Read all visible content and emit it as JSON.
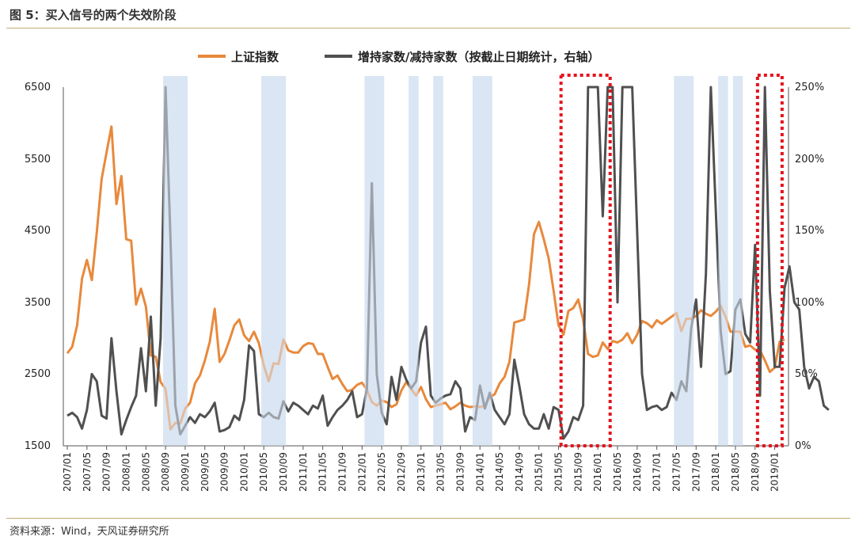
{
  "figure_title": "图 5：买入信号的两个失效阶段",
  "source": "资料来源：Wind，天风证券研究所",
  "colors": {
    "index_line": "#E8893C",
    "ratio_line": "#505050",
    "shade": "#DAE6F4",
    "highlight_box": "#E3141E",
    "rule": "#C9A875"
  },
  "chart_data": {
    "type": "line",
    "legend": [
      "上证指数",
      "增持家数/减持家数（按截止日期统计，右轴）"
    ],
    "left_axis": {
      "min": 1500,
      "max": 6500,
      "ticks": [
        "1500",
        "2500",
        "3500",
        "4500",
        "5500",
        "6500"
      ]
    },
    "right_axis": {
      "min": 0,
      "max": 250,
      "ticks": [
        "0%",
        "50%",
        "100%",
        "150%",
        "200%",
        "250%"
      ]
    },
    "x_tick_labels": [
      "2007/01",
      "2007/05",
      "2007/09",
      "2008/01",
      "2008/05",
      "2008/09",
      "2009/01",
      "2009/05",
      "2009/09",
      "2010/01",
      "2010/05",
      "2010/09",
      "2011/01",
      "2011/05",
      "2011/09",
      "2012/01",
      "2012/05",
      "2012/09",
      "2013/01",
      "2013/05",
      "2013/09",
      "2014/01",
      "2014/05",
      "2014/09",
      "2015/01",
      "2015/05",
      "2015/09",
      "2016/01",
      "2016/05",
      "2016/09",
      "2017/01",
      "2017/05",
      "2017/09",
      "2018/01",
      "2018/05",
      "2018/09",
      "2019/01"
    ],
    "shaded_periods": [
      [
        20,
        24
      ],
      [
        40,
        44
      ],
      [
        61,
        64
      ],
      [
        70,
        71
      ],
      [
        75,
        76
      ],
      [
        83,
        86
      ],
      [
        124,
        127
      ],
      [
        133,
        134
      ],
      [
        136,
        137
      ]
    ],
    "highlight_boxes": [
      [
        101,
        110
      ],
      [
        141,
        145
      ]
    ],
    "series": [
      {
        "name": "上证指数",
        "axis": "left",
        "values": [
          2790,
          2880,
          3180,
          3830,
          4090,
          3810,
          4470,
          5220,
          5590,
          5950,
          4870,
          5260,
          4380,
          4360,
          3470,
          3690,
          3440,
          2760,
          2740,
          2390,
          2290,
          1730,
          1820,
          1810,
          2020,
          2100,
          2370,
          2480,
          2690,
          2950,
          3410,
          2670,
          2780,
          2970,
          3180,
          3260,
          3040,
          2960,
          3090,
          2930,
          2620,
          2400,
          2650,
          2640,
          2980,
          2830,
          2800,
          2800,
          2890,
          2930,
          2920,
          2780,
          2780,
          2600,
          2430,
          2480,
          2360,
          2260,
          2280,
          2350,
          2380,
          2280,
          2110,
          2060,
          2130,
          2110,
          2040,
          2080,
          2270,
          2390,
          2290,
          2200,
          2320,
          2150,
          2040,
          2060,
          2080,
          2100,
          2010,
          2050,
          2100,
          2060,
          2040,
          2050,
          2040,
          2060,
          2180,
          2220,
          2370,
          2460,
          2670,
          3220,
          3240,
          3260,
          3750,
          4450,
          4620,
          4380,
          4110,
          3660,
          3180,
          3050,
          3380,
          3420,
          3540,
          3260,
          2780,
          2740,
          2760,
          2940,
          2850,
          2960,
          2940,
          2980,
          3070,
          2930,
          3050,
          3240,
          3210,
          3150,
          3250,
          3200,
          3250,
          3300,
          3350,
          3100,
          3270,
          3270,
          3310,
          3390,
          3340,
          3310,
          3370,
          3450,
          3300,
          3090,
          3090,
          3090,
          2880,
          2900,
          2840,
          2830,
          2690,
          2530,
          2590,
          2950,
          2980
        ],
        "x_start_index": 0
      },
      {
        "name": "增持家数/减持家数（按截止日期统计，右轴）",
        "axis": "right",
        "values": [
          21,
          23,
          20,
          12,
          25,
          50,
          45,
          21,
          19,
          75,
          38,
          8,
          18,
          27,
          35,
          68,
          38,
          90,
          28,
          75,
          250,
          145,
          28,
          8,
          14,
          20,
          16,
          22,
          20,
          24,
          30,
          10,
          11,
          13,
          21,
          18,
          32,
          70,
          66,
          22,
          20,
          23,
          20,
          19,
          31,
          24,
          30,
          28,
          25,
          22,
          28,
          26,
          35,
          14,
          20,
          25,
          28,
          32,
          38,
          20,
          22,
          40,
          183,
          50,
          23,
          15,
          48,
          32,
          55,
          46,
          40,
          45,
          72,
          83,
          35,
          30,
          33,
          35,
          36,
          45,
          40,
          10,
          20,
          18,
          42,
          26,
          37,
          25,
          20,
          15,
          22,
          60,
          42,
          22,
          15,
          12,
          12,
          22,
          12,
          27,
          25,
          5,
          10,
          20,
          18,
          28,
          255,
          255,
          250,
          160,
          255,
          255,
          100,
          255,
          255,
          250,
          150,
          50,
          25,
          27,
          28,
          25,
          27,
          37,
          32,
          45,
          38,
          82,
          102,
          55,
          120,
          250,
          165,
          80,
          50,
          52,
          95,
          102,
          78,
          72,
          140,
          35,
          250,
          108,
          55,
          55,
          110,
          125,
          100,
          95,
          55,
          40,
          48,
          45,
          28,
          25
        ]
      }
    ]
  }
}
